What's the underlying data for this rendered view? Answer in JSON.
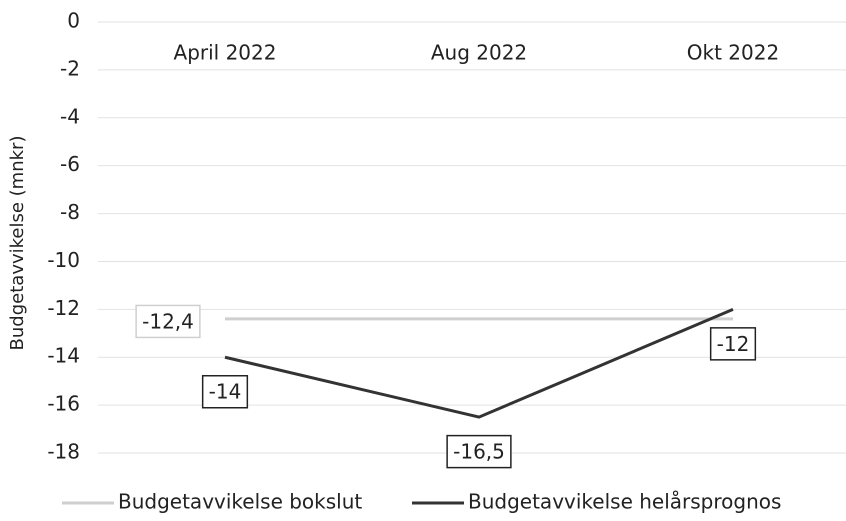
{
  "chart_data": {
    "type": "line",
    "categories": [
      "April 2022",
      "Aug 2022",
      "Okt 2022"
    ],
    "ylabel": "Budgetavvikelse (mnkr)",
    "ylim": [
      -18.5,
      0
    ],
    "yticks": [
      0,
      -2,
      -4,
      -6,
      -8,
      -10,
      -12,
      -14,
      -16,
      -18
    ],
    "grid": true,
    "legend": "bottom",
    "series": [
      {
        "name": "Budgetavvikelse bokslut",
        "color": "#cfcfcf",
        "values": [
          -12.4,
          -12.4,
          -12.4
        ],
        "value_labels": [
          "-12,4",
          null,
          null
        ]
      },
      {
        "name": "Budgetavvikelse helårsprognos",
        "color": "#333333",
        "values": [
          -14,
          -16.5,
          -12
        ],
        "value_labels": [
          "-14",
          "-16,5",
          "-12"
        ]
      }
    ]
  }
}
